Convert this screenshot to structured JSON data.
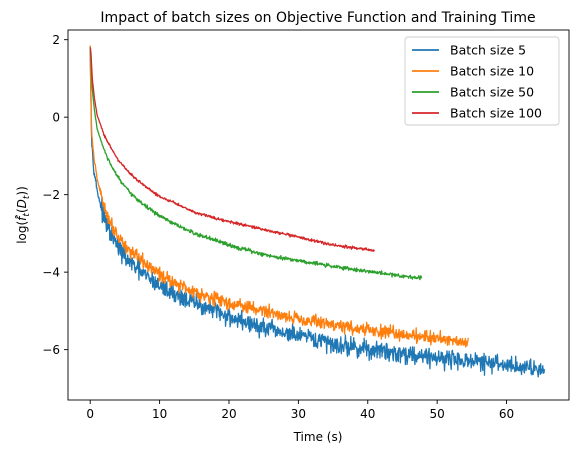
{
  "chart_data": {
    "type": "line",
    "title": "Impact of batch sizes on Objective Function and Training Time",
    "xlabel": "Time (s)",
    "ylabel": "log(f̂_t(D_t))",
    "xlim": [
      -3.2,
      69.0
    ],
    "ylim": [
      -7.3,
      2.25
    ],
    "xticks": [
      0,
      10,
      20,
      30,
      40,
      50,
      60
    ],
    "yticks": [
      2,
      0,
      -2,
      -4,
      -6
    ],
    "xtick_labels": [
      "0",
      "10",
      "20",
      "30",
      "40",
      "50",
      "60"
    ],
    "ytick_labels": [
      "2",
      "0",
      "−2",
      "−4",
      "−6"
    ],
    "grid": false,
    "legend_position": "top-right",
    "series": [
      {
        "name": "Batch size 5",
        "color": "#1f77b4",
        "noise": 0.24,
        "x": [
          0.0,
          0.2,
          0.5,
          1,
          2,
          3,
          4,
          5,
          6,
          8,
          10,
          12,
          15,
          20,
          25,
          30,
          35,
          40,
          45,
          50,
          55,
          60,
          65.5
        ],
        "y": [
          1.8,
          -0.6,
          -1.3,
          -1.9,
          -2.6,
          -3.05,
          -3.35,
          -3.6,
          -3.8,
          -4.1,
          -4.35,
          -4.55,
          -4.8,
          -5.15,
          -5.45,
          -5.65,
          -5.85,
          -6.0,
          -6.1,
          -6.2,
          -6.3,
          -6.4,
          -6.5
        ]
      },
      {
        "name": "Batch size 10",
        "color": "#ff7f0e",
        "noise": 0.17,
        "x": [
          0.0,
          0.2,
          0.5,
          1,
          2,
          3,
          4,
          5,
          6,
          8,
          10,
          12,
          15,
          20,
          25,
          30,
          35,
          40,
          45,
          50,
          54.5
        ],
        "y": [
          1.8,
          -0.4,
          -1.0,
          -1.6,
          -2.3,
          -2.75,
          -3.05,
          -3.3,
          -3.5,
          -3.8,
          -4.05,
          -4.25,
          -4.5,
          -4.8,
          -5.0,
          -5.2,
          -5.35,
          -5.5,
          -5.6,
          -5.7,
          -5.8
        ]
      },
      {
        "name": "Batch size 50",
        "color": "#2ca02c",
        "noise": 0.05,
        "x": [
          0.0,
          0.1,
          0.3,
          0.6,
          1,
          2,
          3,
          4,
          5,
          6,
          8,
          10,
          12,
          15,
          20,
          25,
          30,
          35,
          40,
          45,
          47.8
        ],
        "y": [
          1.8,
          1.5,
          0.7,
          0.2,
          -0.3,
          -0.85,
          -1.25,
          -1.55,
          -1.8,
          -2.0,
          -2.3,
          -2.55,
          -2.75,
          -3.0,
          -3.3,
          -3.55,
          -3.7,
          -3.85,
          -3.98,
          -4.1,
          -4.15
        ]
      },
      {
        "name": "Batch size 100",
        "color": "#d62728",
        "noise": 0.035,
        "x": [
          0.0,
          0.1,
          0.3,
          0.6,
          1,
          2,
          3,
          4,
          5,
          6,
          8,
          10,
          12,
          15,
          20,
          25,
          30,
          35,
          40,
          41.0
        ],
        "y": [
          1.8,
          1.7,
          1.0,
          0.5,
          0.05,
          -0.45,
          -0.8,
          -1.1,
          -1.3,
          -1.5,
          -1.8,
          -2.05,
          -2.2,
          -2.45,
          -2.7,
          -2.9,
          -3.1,
          -3.3,
          -3.42,
          -3.45
        ]
      }
    ]
  }
}
